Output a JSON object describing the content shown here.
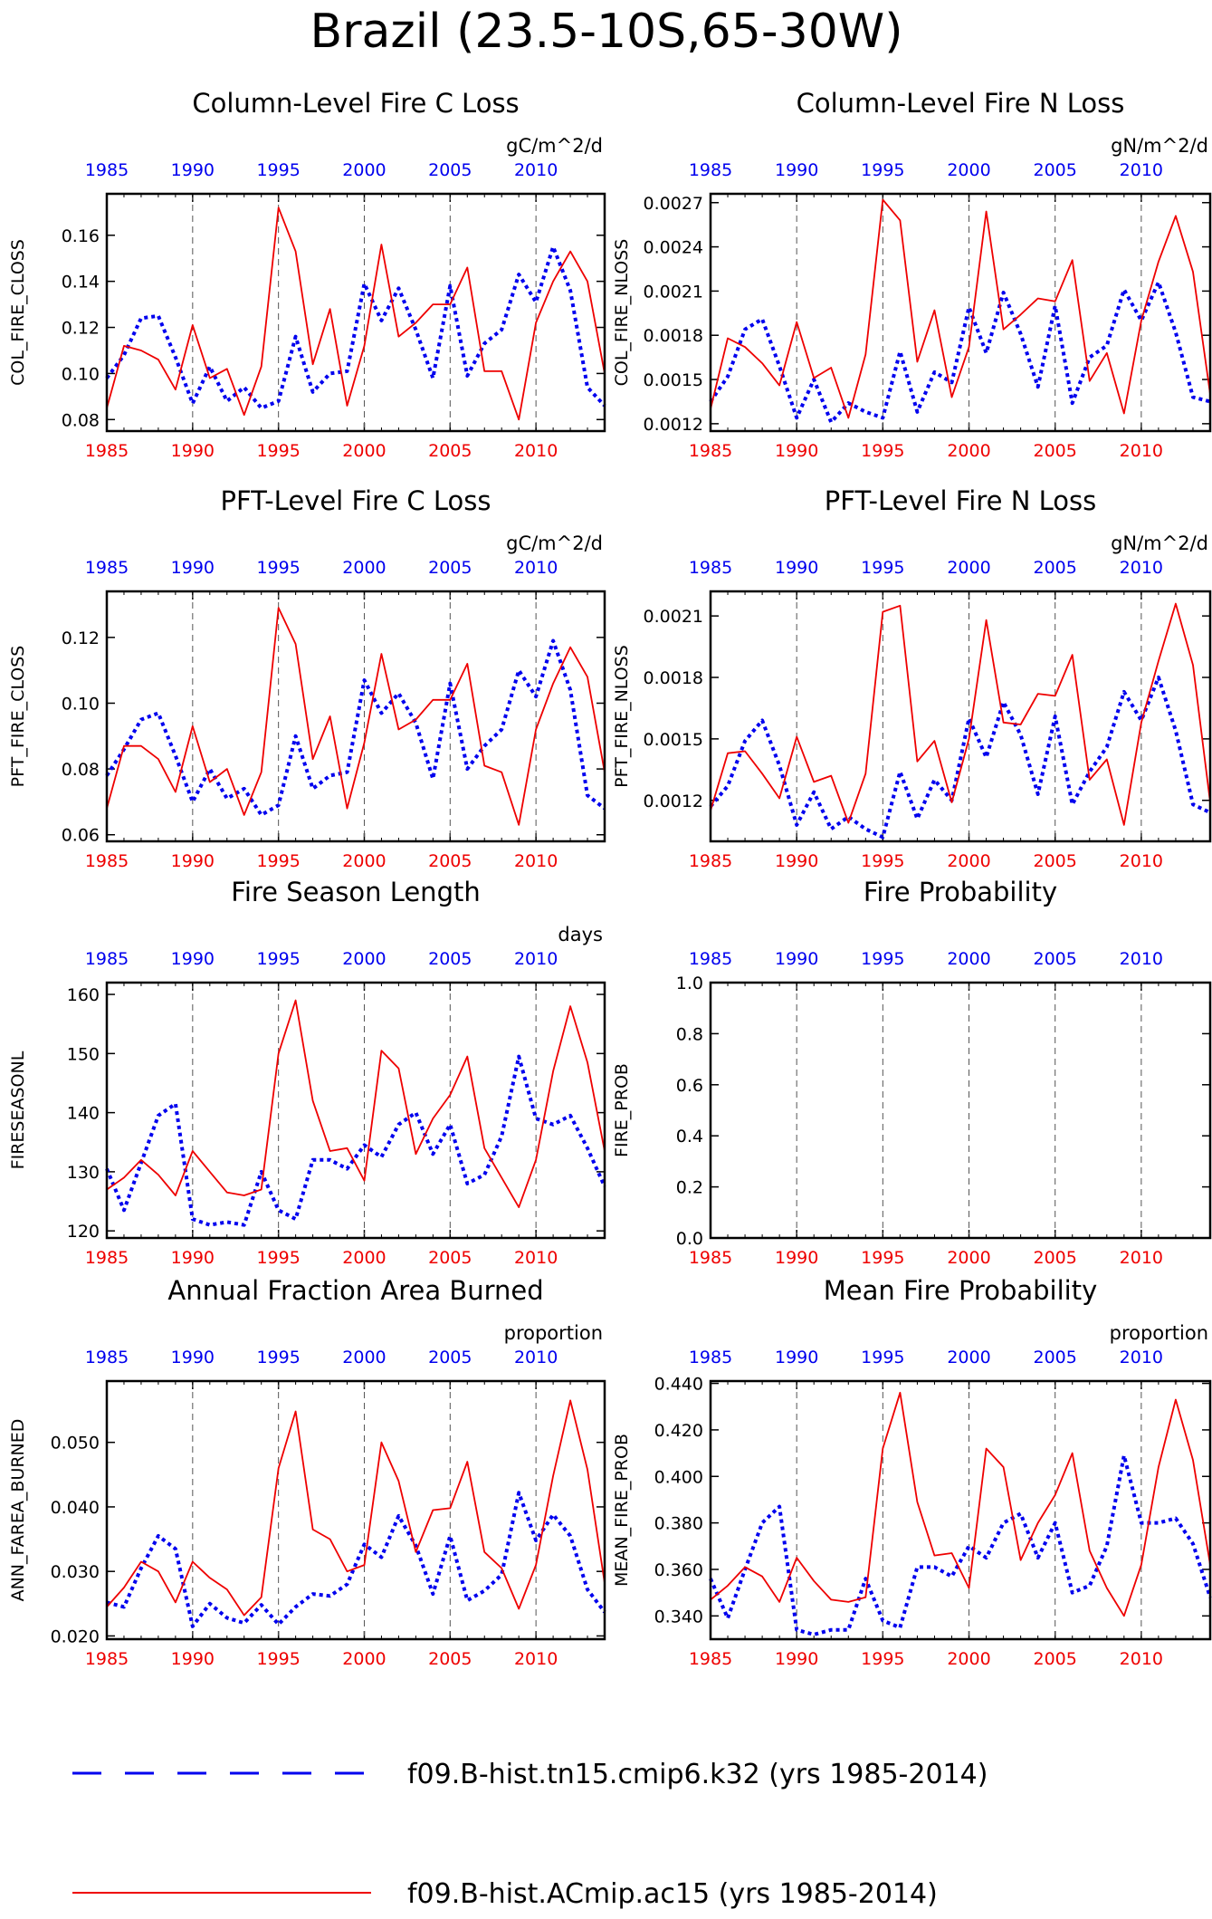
{
  "title": "Brazil (23.5-10S,65-30W)",
  "colors": {
    "series_a": "#0000ee",
    "series_b": "#ee0000",
    "axis": "#000000"
  },
  "x_ticks": [
    1985,
    1990,
    1995,
    2000,
    2005,
    2010
  ],
  "legend": {
    "series_a_label": "f09.B-hist.tn15.cmip6.k32 (yrs 1985-2014)",
    "series_b_label": "f09.B-hist.ACmip.ac15 (yrs 1985-2014)"
  },
  "chart_data": [
    {
      "type": "line",
      "title": "Column-Level Fire C Loss",
      "units": "gC/m^2/d",
      "ylabel": "COL_FIRE_CLOSS",
      "xlim": [
        1985,
        2014
      ],
      "ylim": [
        0.075,
        0.178
      ],
      "yticks": [
        0.08,
        0.1,
        0.12,
        0.14,
        0.16
      ],
      "ytick_labels": [
        "0.08",
        "0.10",
        "0.12",
        "0.14",
        "0.16"
      ],
      "x": [
        1985,
        1986,
        1987,
        1988,
        1989,
        1990,
        1991,
        1992,
        1993,
        1994,
        1995,
        1996,
        1997,
        1998,
        1999,
        2000,
        2001,
        2002,
        2003,
        2004,
        2005,
        2006,
        2007,
        2008,
        2009,
        2010,
        2011,
        2012,
        2013,
        2014
      ],
      "series": [
        {
          "values": [
            0.098,
            0.108,
            0.124,
            0.125,
            0.107,
            0.087,
            0.103,
            0.088,
            0.094,
            0.085,
            0.088,
            0.116,
            0.092,
            0.1,
            0.101,
            0.139,
            0.123,
            0.137,
            0.119,
            0.098,
            0.138,
            0.099,
            0.113,
            0.119,
            0.143,
            0.131,
            0.155,
            0.136,
            0.094,
            0.086
          ]
        },
        {
          "values": [
            0.085,
            0.112,
            0.11,
            0.106,
            0.093,
            0.121,
            0.098,
            0.102,
            0.082,
            0.103,
            0.172,
            0.153,
            0.104,
            0.128,
            0.086,
            0.112,
            0.156,
            0.116,
            0.122,
            0.13,
            0.13,
            0.146,
            0.101,
            0.101,
            0.08,
            0.122,
            0.14,
            0.153,
            0.14,
            0.1
          ]
        }
      ]
    },
    {
      "type": "line",
      "title": "Column-Level Fire N Loss",
      "units": "gN/m^2/d",
      "ylabel": "COL_FIRE_NLOSS",
      "xlim": [
        1985,
        2014
      ],
      "ylim": [
        0.00115,
        0.00276
      ],
      "yticks": [
        0.0012,
        0.0015,
        0.0018,
        0.0021,
        0.0024,
        0.0027
      ],
      "ytick_labels": [
        "0.0012",
        "0.0015",
        "0.0018",
        "0.0021",
        "0.0024",
        "0.0027"
      ],
      "x": [
        1985,
        1986,
        1987,
        1988,
        1989,
        1990,
        1991,
        1992,
        1993,
        1994,
        1995,
        1996,
        1997,
        1998,
        1999,
        2000,
        2001,
        2002,
        2003,
        2004,
        2005,
        2006,
        2007,
        2008,
        2009,
        2010,
        2011,
        2012,
        2013,
        2014
      ],
      "series": [
        {
          "values": [
            0.00135,
            0.00152,
            0.00184,
            0.00191,
            0.00159,
            0.00124,
            0.0015,
            0.00121,
            0.00134,
            0.00128,
            0.00124,
            0.00169,
            0.00128,
            0.00155,
            0.00148,
            0.00199,
            0.00168,
            0.00209,
            0.00181,
            0.00145,
            0.002,
            0.00134,
            0.00165,
            0.00173,
            0.00211,
            0.0019,
            0.00216,
            0.00182,
            0.00138,
            0.00135
          ]
        },
        {
          "values": [
            0.0013,
            0.00178,
            0.00172,
            0.00161,
            0.00146,
            0.00189,
            0.00151,
            0.00158,
            0.00124,
            0.00167,
            0.00272,
            0.00258,
            0.00162,
            0.00197,
            0.00138,
            0.00172,
            0.00264,
            0.00184,
            0.00194,
            0.00205,
            0.00203,
            0.00231,
            0.00149,
            0.00168,
            0.00127,
            0.0019,
            0.0023,
            0.00261,
            0.00223,
            0.0014
          ]
        }
      ]
    },
    {
      "type": "line",
      "title": "PFT-Level Fire C Loss",
      "units": "gC/m^2/d",
      "ylabel": "PFT_FIRE_CLOSS",
      "xlim": [
        1985,
        2014
      ],
      "ylim": [
        0.058,
        0.134
      ],
      "yticks": [
        0.06,
        0.08,
        0.1,
        0.12
      ],
      "ytick_labels": [
        "0.06",
        "0.08",
        "0.10",
        "0.12"
      ],
      "x": [
        1985,
        1986,
        1987,
        1988,
        1989,
        1990,
        1991,
        1992,
        1993,
        1994,
        1995,
        1996,
        1997,
        1998,
        1999,
        2000,
        2001,
        2002,
        2003,
        2004,
        2005,
        2006,
        2007,
        2008,
        2009,
        2010,
        2011,
        2012,
        2013,
        2014
      ],
      "series": [
        {
          "values": [
            0.078,
            0.086,
            0.095,
            0.097,
            0.084,
            0.07,
            0.08,
            0.071,
            0.074,
            0.066,
            0.069,
            0.09,
            0.074,
            0.078,
            0.079,
            0.107,
            0.097,
            0.103,
            0.094,
            0.077,
            0.106,
            0.08,
            0.087,
            0.092,
            0.11,
            0.102,
            0.119,
            0.104,
            0.072,
            0.068
          ]
        },
        {
          "values": [
            0.068,
            0.087,
            0.087,
            0.083,
            0.073,
            0.093,
            0.076,
            0.08,
            0.066,
            0.079,
            0.129,
            0.118,
            0.083,
            0.096,
            0.068,
            0.088,
            0.115,
            0.092,
            0.095,
            0.101,
            0.101,
            0.112,
            0.081,
            0.079,
            0.063,
            0.092,
            0.106,
            0.117,
            0.108,
            0.079
          ]
        }
      ]
    },
    {
      "type": "line",
      "title": "PFT-Level Fire N Loss",
      "units": "gN/m^2/d",
      "ylabel": "PFT_FIRE_NLOSS",
      "xlim": [
        1985,
        2014
      ],
      "ylim": [
        0.001,
        0.00222
      ],
      "yticks": [
        0.0012,
        0.0015,
        0.0018,
        0.0021
      ],
      "ytick_labels": [
        "0.0012",
        "0.0015",
        "0.0018",
        "0.0021"
      ],
      "x": [
        1985,
        1986,
        1987,
        1988,
        1989,
        1990,
        1991,
        1992,
        1993,
        1994,
        1995,
        1996,
        1997,
        1998,
        1999,
        2000,
        2001,
        2002,
        2003,
        2004,
        2005,
        2006,
        2007,
        2008,
        2009,
        2010,
        2011,
        2012,
        2013,
        2014
      ],
      "series": [
        {
          "values": [
            0.00117,
            0.00127,
            0.00149,
            0.00159,
            0.00137,
            0.00108,
            0.00124,
            0.00106,
            0.00112,
            0.00106,
            0.00102,
            0.00134,
            0.00111,
            0.0013,
            0.0012,
            0.0016,
            0.00141,
            0.00168,
            0.00152,
            0.00123,
            0.00161,
            0.00118,
            0.00134,
            0.00146,
            0.00173,
            0.00159,
            0.0018,
            0.00154,
            0.00118,
            0.00114
          ]
        },
        {
          "values": [
            0.00115,
            0.00143,
            0.00144,
            0.00133,
            0.00121,
            0.00151,
            0.00129,
            0.00132,
            0.00109,
            0.00133,
            0.00212,
            0.00215,
            0.00139,
            0.00149,
            0.00119,
            0.0015,
            0.00208,
            0.00158,
            0.00157,
            0.00172,
            0.00171,
            0.00191,
            0.0013,
            0.0014,
            0.00108,
            0.00158,
            0.00188,
            0.00216,
            0.00186,
            0.00119
          ]
        }
      ]
    },
    {
      "type": "line",
      "title": "Fire Season Length",
      "units": "days",
      "ylabel": "FIRESEASONL",
      "xlim": [
        1985,
        2014
      ],
      "ylim": [
        118.8,
        162
      ],
      "yticks": [
        120,
        130,
        140,
        150,
        160
      ],
      "ytick_labels": [
        "120",
        "130",
        "140",
        "150",
        "160"
      ],
      "x": [
        1985,
        1986,
        1987,
        1988,
        1989,
        1990,
        1991,
        1992,
        1993,
        1994,
        1995,
        1996,
        1997,
        1998,
        1999,
        2000,
        2001,
        2002,
        2003,
        2004,
        2005,
        2006,
        2007,
        2008,
        2009,
        2010,
        2011,
        2012,
        2013,
        2014
      ],
      "series": [
        {
          "values": [
            130.5,
            123.5,
            131.5,
            139.5,
            141.5,
            122.0,
            121.0,
            121.5,
            121.0,
            130.0,
            123.5,
            122.0,
            132.0,
            132.0,
            130.5,
            134.5,
            132.5,
            138.0,
            140.0,
            133.0,
            138.0,
            128.0,
            129.5,
            136.0,
            149.5,
            139.0,
            138.0,
            139.5,
            134.0,
            127.5
          ]
        },
        {
          "values": [
            127.0,
            129.0,
            132.0,
            129.5,
            126.0,
            133.5,
            130.0,
            126.5,
            126.0,
            127.0,
            150.0,
            159.0,
            142.0,
            133.5,
            134.0,
            128.5,
            150.5,
            147.5,
            133.0,
            139.0,
            143.0,
            149.5,
            134.0,
            129.0,
            124.0,
            132.0,
            147.0,
            158.0,
            148.5,
            133.5
          ]
        }
      ]
    },
    {
      "type": "line",
      "title": "Fire Probability",
      "units": "",
      "ylabel": "FIRE_PROB",
      "xlim": [
        1985,
        2014
      ],
      "ylim": [
        0.0,
        1.0
      ],
      "yticks": [
        0.0,
        0.2,
        0.4,
        0.6,
        0.8,
        1.0
      ],
      "ytick_labels": [
        "0.0",
        "0.2",
        "0.4",
        "0.6",
        "0.8",
        "1.0"
      ],
      "x": [],
      "series": []
    },
    {
      "type": "line",
      "title": "Annual Fraction Area Burned",
      "units": "proportion",
      "ylabel": "ANN_FAREA_BURNED",
      "xlim": [
        1985,
        2014
      ],
      "ylim": [
        0.0195,
        0.0595
      ],
      "yticks": [
        0.02,
        0.03,
        0.04,
        0.05
      ],
      "ytick_labels": [
        "0.020",
        "0.030",
        "0.040",
        "0.050"
      ],
      "x": [
        1985,
        1986,
        1987,
        1988,
        1989,
        1990,
        1991,
        1992,
        1993,
        1994,
        1995,
        1996,
        1997,
        1998,
        1999,
        2000,
        2001,
        2002,
        2003,
        2004,
        2005,
        2006,
        2007,
        2008,
        2009,
        2010,
        2011,
        2012,
        2013,
        2014
      ],
      "series": [
        {
          "values": [
            0.0252,
            0.0245,
            0.0305,
            0.0355,
            0.0335,
            0.0215,
            0.025,
            0.0228,
            0.022,
            0.0248,
            0.0218,
            0.0245,
            0.0265,
            0.0262,
            0.028,
            0.0342,
            0.0322,
            0.0386,
            0.034,
            0.0265,
            0.0355,
            0.0255,
            0.027,
            0.0295,
            0.0422,
            0.0348,
            0.0388,
            0.0355,
            0.0272,
            0.0237
          ]
        },
        {
          "values": [
            0.0245,
            0.0275,
            0.0315,
            0.03,
            0.0252,
            0.0315,
            0.029,
            0.0272,
            0.0232,
            0.026,
            0.046,
            0.0548,
            0.0365,
            0.035,
            0.03,
            0.031,
            0.05,
            0.044,
            0.033,
            0.0395,
            0.0398,
            0.047,
            0.033,
            0.0305,
            0.0242,
            0.031,
            0.0448,
            0.0565,
            0.0458,
            0.0282
          ]
        }
      ]
    },
    {
      "type": "line",
      "title": "Mean Fire Probability",
      "units": "proportion",
      "ylabel": "MEAN_FIRE_PROB",
      "xlim": [
        1985,
        2014
      ],
      "ylim": [
        0.33,
        0.441
      ],
      "yticks": [
        0.34,
        0.36,
        0.38,
        0.4,
        0.42,
        0.44
      ],
      "ytick_labels": [
        "0.340",
        "0.360",
        "0.380",
        "0.400",
        "0.420",
        "0.440"
      ],
      "x": [
        1985,
        1986,
        1987,
        1988,
        1989,
        1990,
        1991,
        1992,
        1993,
        1994,
        1995,
        1996,
        1997,
        1998,
        1999,
        2000,
        2001,
        2002,
        2003,
        2004,
        2005,
        2006,
        2007,
        2008,
        2009,
        2010,
        2011,
        2012,
        2013,
        2014
      ],
      "series": [
        {
          "values": [
            0.356,
            0.339,
            0.36,
            0.38,
            0.387,
            0.334,
            0.332,
            0.334,
            0.334,
            0.356,
            0.338,
            0.335,
            0.361,
            0.361,
            0.357,
            0.37,
            0.365,
            0.38,
            0.384,
            0.365,
            0.38,
            0.35,
            0.353,
            0.37,
            0.409,
            0.38,
            0.38,
            0.382,
            0.371,
            0.348
          ]
        },
        {
          "values": [
            0.347,
            0.353,
            0.361,
            0.357,
            0.346,
            0.365,
            0.355,
            0.347,
            0.346,
            0.348,
            0.412,
            0.436,
            0.389,
            0.366,
            0.367,
            0.352,
            0.412,
            0.404,
            0.364,
            0.38,
            0.392,
            0.41,
            0.368,
            0.352,
            0.34,
            0.362,
            0.404,
            0.433,
            0.407,
            0.362
          ]
        }
      ]
    }
  ]
}
